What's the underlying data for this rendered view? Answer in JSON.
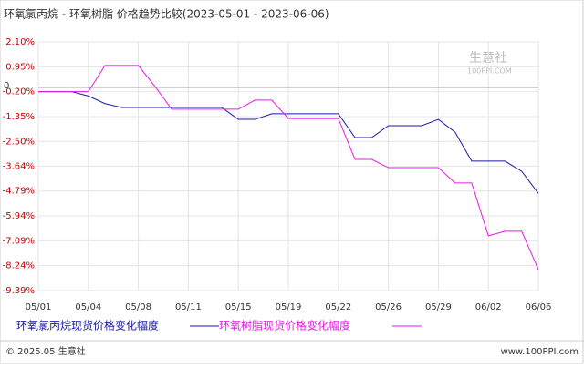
{
  "chart_data": {
    "type": "line",
    "title": "环氧氯丙烷 - 环氧树脂 价格趋势比较(2023-05-01 - 2023-06-06)",
    "zero_label": "0",
    "watermark": "生意社",
    "watermark_url": "100PPI.COM",
    "footer_left": "© 2025.05 生意社",
    "footer_right": "www.100PPI.com",
    "categories": [
      "05/01",
      null,
      null,
      "05/04",
      null,
      null,
      "05/08",
      null,
      null,
      "05/11",
      null,
      null,
      "05/15",
      null,
      null,
      "05/19",
      null,
      null,
      "05/22",
      null,
      null,
      "05/26",
      null,
      null,
      "05/29",
      null,
      null,
      "06/02",
      null,
      null,
      "06/06"
    ],
    "series": [
      {
        "name": "环氧氯丙烷现货价格变化幅度",
        "color": "#1a1aa6",
        "values": [
          -0.2,
          -0.2,
          -0.2,
          -0.4,
          -0.75,
          -0.93,
          -0.93,
          -0.93,
          -0.93,
          -0.93,
          -0.93,
          -0.93,
          -1.48,
          -1.48,
          -1.22,
          -1.22,
          -1.22,
          -1.22,
          -1.22,
          -2.32,
          -2.32,
          -1.77,
          -1.77,
          -1.77,
          -1.48,
          -2.07,
          -3.41,
          -3.41,
          -3.41,
          -3.88,
          -4.9
        ]
      },
      {
        "name": "环氧树脂现货价格变化幅度",
        "color": "#e619e6",
        "values": [
          -0.2,
          -0.2,
          -0.2,
          -0.2,
          1.01,
          1.01,
          1.01,
          0.04,
          -1.01,
          -1.01,
          -1.01,
          -1.01,
          -1.01,
          -0.59,
          -0.59,
          -1.44,
          -1.44,
          -1.44,
          -1.44,
          -3.33,
          -3.33,
          -3.71,
          -3.71,
          -3.71,
          -3.71,
          -4.42,
          -4.42,
          -6.86,
          -6.65,
          -6.65,
          -8.42
        ]
      }
    ],
    "ylim": [
      -9.39,
      2.1
    ],
    "yticks": [
      {
        "value": 2.1,
        "label": "2.10%"
      },
      {
        "value": 0.95,
        "label": "0.95%"
      },
      {
        "value": -0.2,
        "label": "-0.20%"
      },
      {
        "value": -1.35,
        "label": "-1.35%"
      },
      {
        "value": -2.5,
        "label": "-2.50%"
      },
      {
        "value": -3.64,
        "label": "-3.64%"
      },
      {
        "value": -4.79,
        "label": "-4.79%"
      },
      {
        "value": -5.94,
        "label": "-5.94%"
      },
      {
        "value": -7.09,
        "label": "-7.09%"
      },
      {
        "value": -8.24,
        "label": "-8.24%"
      },
      {
        "value": -9.39,
        "label": "-9.39%"
      }
    ],
    "grid": true
  }
}
